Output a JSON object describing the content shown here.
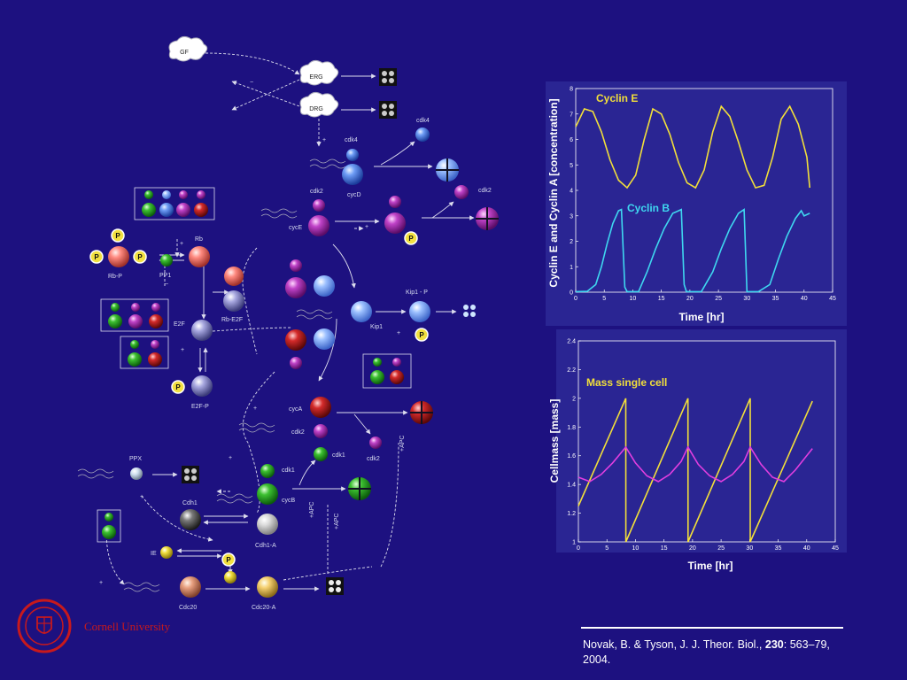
{
  "diagram": {
    "nodes": {
      "gf": "GF",
      "erg": "ERG",
      "drg": "DRG",
      "cdk4_top": "cdk4",
      "cdk4": "cdk4",
      "cycd": "cycD",
      "cdk2_a": "cdk2",
      "cyce": "cycE",
      "cdk2_b": "cdk2",
      "rb": "Rb",
      "rbp": "Rb-P",
      "pp1": "PP1",
      "rbe2f": "Rb-E2F",
      "e2f": "E2F",
      "e2fp": "E2F-P",
      "kip1p": "Kip1 - P",
      "kip1": "Kip1",
      "cyca": "cycA",
      "cdk2_c": "cdk2",
      "cdk1_a": "cdk1",
      "cdk2_d": "cdk2",
      "apc1": "+APC",
      "ppx": "PPX",
      "cdk1_b": "cdk1",
      "cycb": "cycB",
      "cdh1": "Cdh1",
      "cdh1a": "Cdh1-A",
      "apc2": "+APC",
      "apc3": "+APC",
      "ie": "IE",
      "cdc20": "Cdc20",
      "cdc20a": "Cdc20-A",
      "p": "P",
      "plus": "+",
      "minus": "−"
    }
  },
  "chart_data": [
    {
      "type": "line",
      "title": "",
      "xlabel": "Time [hr]",
      "ylabel": "Cyclin E and Cyclin A [concentration]",
      "xlim": [
        0,
        45
      ],
      "ylim": [
        0,
        8
      ],
      "xticks": [
        0,
        5,
        10,
        15,
        20,
        25,
        30,
        35,
        40,
        45
      ],
      "yticks": [
        0,
        1,
        2,
        3,
        4,
        5,
        6,
        7,
        8
      ],
      "grid": false,
      "annotations": [
        "Cyclin E",
        "Cyclin B"
      ],
      "series": [
        {
          "name": "Cyclin E",
          "color": "#f2df3a",
          "x": [
            0,
            1.5,
            3,
            4.5,
            6,
            7.5,
            9,
            10.5,
            12,
            13.5,
            15,
            16.5,
            18,
            19.5,
            21,
            22.5,
            24,
            25.5,
            27,
            28.5,
            30,
            31.5,
            33,
            34.5,
            36,
            37.5,
            39,
            40.5,
            41
          ],
          "y": [
            6.5,
            7.2,
            7.1,
            6.3,
            5.2,
            4.4,
            4.1,
            4.6,
            6.0,
            7.2,
            7.0,
            6.2,
            5.1,
            4.3,
            4.1,
            4.8,
            6.3,
            7.3,
            6.9,
            5.9,
            4.8,
            4.1,
            4.2,
            5.3,
            6.8,
            7.3,
            6.6,
            5.3,
            4.1
          ]
        },
        {
          "name": "Cyclin B",
          "color": "#3fd7f0",
          "x": [
            0,
            2,
            3.5,
            4.5,
            5.5,
            6.5,
            7.5,
            8,
            8.6,
            9,
            11,
            12.5,
            14,
            15.5,
            17,
            18.5,
            19,
            19.4,
            22,
            24,
            25.5,
            27,
            28.5,
            29.5,
            30,
            32,
            34,
            35.5,
            37,
            38.5,
            39.5,
            40,
            41
          ],
          "y": [
            0.02,
            0.03,
            0.3,
            1.0,
            1.9,
            2.7,
            3.2,
            3.25,
            0.2,
            0.02,
            0.02,
            0.8,
            1.7,
            2.5,
            3.1,
            3.25,
            0.3,
            0.02,
            0.02,
            0.8,
            1.7,
            2.5,
            3.1,
            3.25,
            0.02,
            0.02,
            0.3,
            1.3,
            2.2,
            2.9,
            3.2,
            3.0,
            3.1
          ]
        }
      ]
    },
    {
      "type": "line",
      "title": "",
      "xlabel": "Time [hr]",
      "ylabel": "Cellmass [mass]",
      "xlim": [
        0,
        45
      ],
      "ylim": [
        1,
        2.4
      ],
      "xticks": [
        0,
        5,
        10,
        15,
        20,
        25,
        30,
        35,
        40,
        45
      ],
      "yticks": [
        1,
        1.2,
        1.4,
        1.6,
        1.8,
        2,
        2.2,
        2.4
      ],
      "grid": false,
      "annotations": [
        "Mass single cell"
      ],
      "series": [
        {
          "name": "Mass single cell",
          "color": "#f2df3a",
          "x": [
            0,
            8.3,
            8.31,
            19.2,
            19.21,
            30.1,
            30.11,
            41
          ],
          "y": [
            1.25,
            2.0,
            1.0,
            2.0,
            1.0,
            2.0,
            1.0,
            1.98
          ]
        },
        {
          "name": "",
          "color": "#e23ee0",
          "x": [
            0,
            2,
            4,
            6,
            8.3,
            10,
            12,
            14,
            16,
            18,
            19.2,
            21,
            23,
            25,
            27,
            29,
            30.1,
            32,
            34,
            36,
            38,
            41
          ],
          "y": [
            1.45,
            1.42,
            1.47,
            1.55,
            1.66,
            1.55,
            1.46,
            1.42,
            1.47,
            1.56,
            1.66,
            1.54,
            1.46,
            1.42,
            1.47,
            1.56,
            1.66,
            1.54,
            1.45,
            1.42,
            1.5,
            1.65
          ]
        }
      ]
    }
  ],
  "citation": {
    "authors": "Novak, B. & Tyson, J. J. Theor. Biol., ",
    "volume": "230",
    "pages": ": 563–79,",
    "year": "2004."
  },
  "logo": {
    "text": "Cornell University",
    "color": "#c8191c"
  },
  "colors": {
    "background": "#1d1180",
    "plot_bg": "#2a2593",
    "cyclin_e": "#f2df3a",
    "cyclin_b": "#3fd7f0",
    "mass": "#f2df3a",
    "mass2": "#e23ee0"
  }
}
